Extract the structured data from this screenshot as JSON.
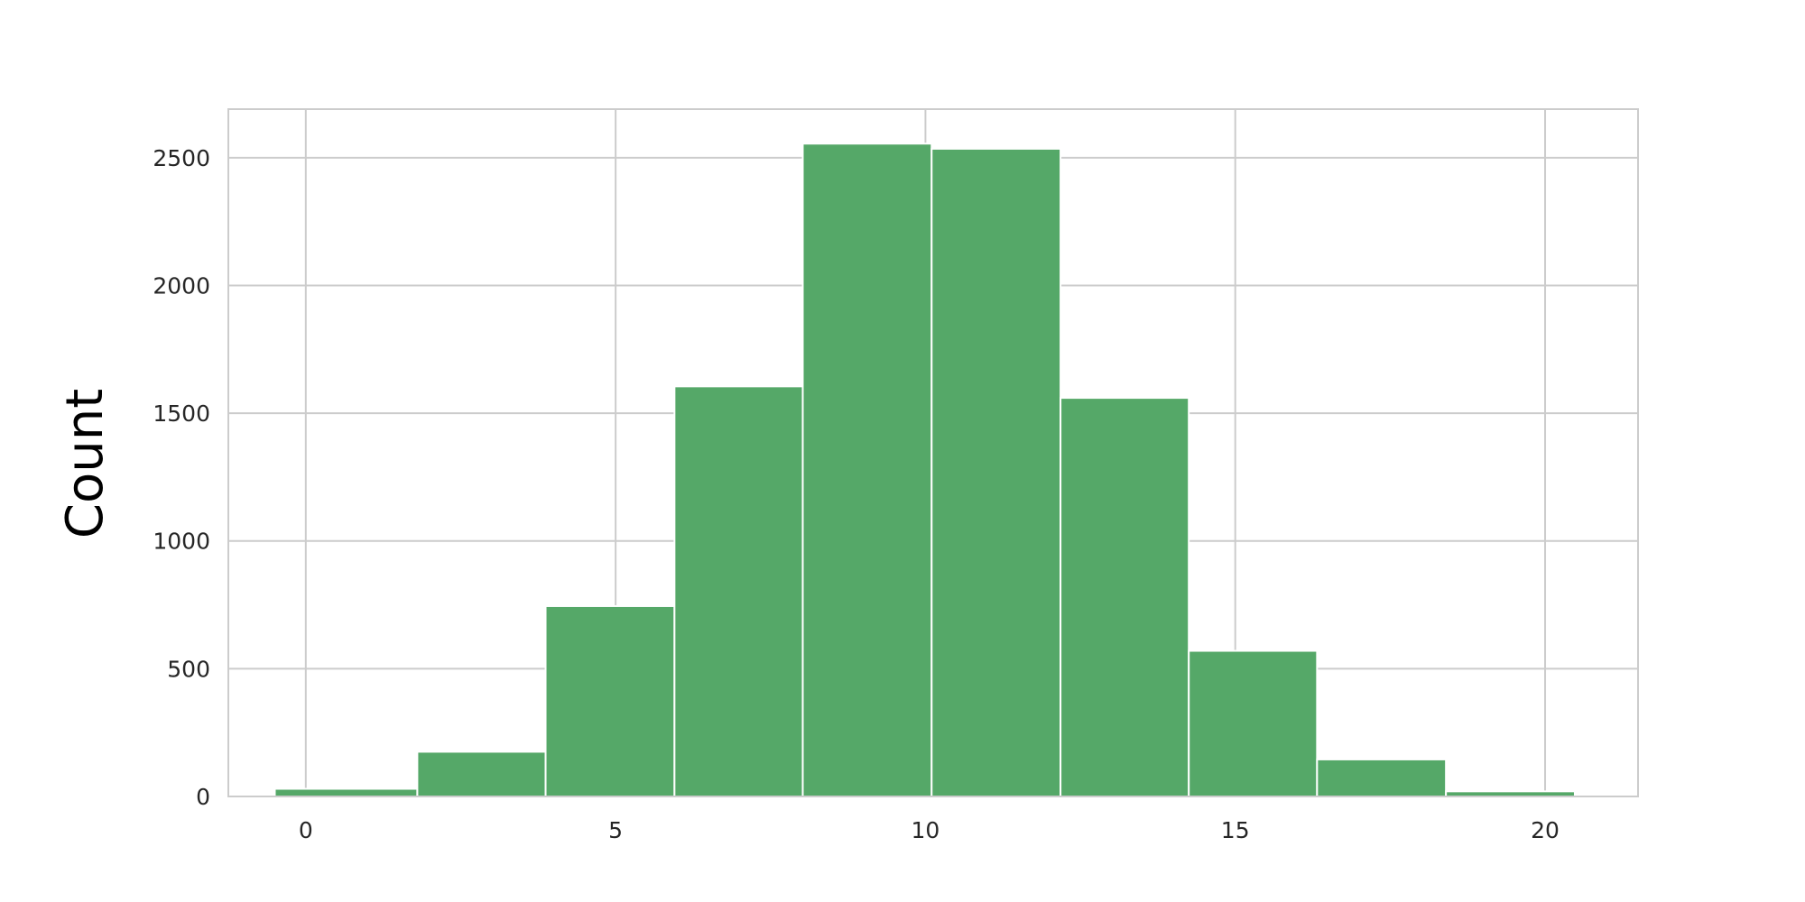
{
  "chart_data": {
    "type": "bar",
    "title": "",
    "xlabel": "",
    "ylabel": "Count",
    "bins": [
      {
        "start": -0.5,
        "end": 1.8,
        "value": 30
      },
      {
        "start": 1.8,
        "end": 3.87,
        "value": 175
      },
      {
        "start": 3.87,
        "end": 5.95,
        "value": 745
      },
      {
        "start": 5.95,
        "end": 8.02,
        "value": 1605
      },
      {
        "start": 8.02,
        "end": 10.1,
        "value": 2555
      },
      {
        "start": 10.1,
        "end": 12.18,
        "value": 2535
      },
      {
        "start": 12.18,
        "end": 14.25,
        "value": 1560
      },
      {
        "start": 14.25,
        "end": 16.32,
        "value": 570
      },
      {
        "start": 16.32,
        "end": 18.4,
        "value": 145
      },
      {
        "start": 18.4,
        "end": 20.48,
        "value": 20
      }
    ],
    "xlim": [
      -1.25,
      21.5
    ],
    "ylim": [
      0,
      2690
    ],
    "xticks": [
      0,
      5,
      10,
      15,
      20
    ],
    "yticks": [
      0,
      500,
      1000,
      1500,
      2000,
      2500
    ],
    "grid": true,
    "colors": {
      "bar": "#55a868",
      "grid": "#cccccc",
      "frame": "#cccccc",
      "bar_edge": "#ffffff"
    }
  }
}
